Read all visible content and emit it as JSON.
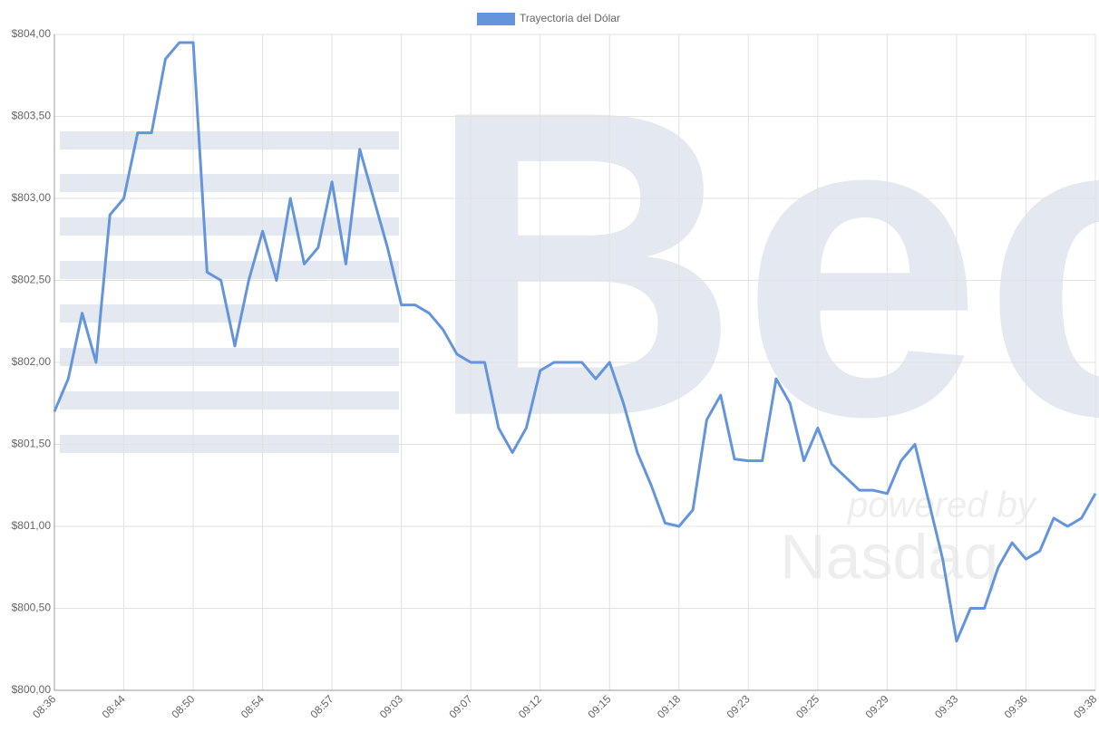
{
  "chart_data": {
    "type": "line",
    "legend": "top-center",
    "grid": true,
    "categories": [
      "08:36",
      null,
      null,
      null,
      null,
      "08:44",
      null,
      null,
      null,
      null,
      "08:50",
      null,
      null,
      null,
      null,
      "08:54",
      null,
      null,
      null,
      null,
      "08:57",
      null,
      null,
      null,
      null,
      "09:03",
      null,
      null,
      null,
      null,
      "09:07",
      null,
      null,
      null,
      null,
      "09:12",
      null,
      null,
      null,
      null,
      "09:15",
      null,
      null,
      null,
      null,
      "09:18",
      null,
      null,
      null,
      null,
      "09:23",
      null,
      null,
      null,
      null,
      "09:25",
      null,
      null,
      null,
      null,
      "09:29",
      null,
      null,
      null,
      null,
      "09:33",
      null,
      null,
      null,
      null,
      "09:36",
      null,
      null,
      null,
      null,
      "09:38"
    ],
    "series": [
      {
        "name": "Trayectoria del Dólar",
        "color": "#6495dc",
        "values": [
          801.7,
          801.9,
          802.3,
          802.0,
          802.9,
          803.0,
          803.4,
          803.4,
          803.85,
          803.95,
          803.95,
          802.55,
          802.5,
          802.1,
          802.5,
          802.8,
          802.5,
          803.0,
          802.6,
          802.7,
          803.1,
          802.6,
          803.3,
          803.0,
          802.7,
          802.35,
          802.35,
          802.3,
          802.2,
          802.05,
          802.0,
          802.0,
          801.6,
          801.45,
          801.6,
          801.95,
          802.0,
          802.0,
          802.0,
          801.9,
          802.0,
          801.75,
          801.45,
          801.25,
          801.02,
          801.0,
          801.1,
          801.65,
          801.8,
          801.41,
          801.4,
          801.4,
          801.9,
          801.75,
          801.4,
          801.6,
          801.38,
          801.3,
          801.22,
          801.22,
          801.2,
          801.4,
          801.5,
          801.15,
          800.8,
          800.3,
          800.5,
          800.5,
          800.75,
          800.9,
          800.8,
          800.85,
          801.05,
          801.0,
          801.05,
          801.2
        ]
      }
    ],
    "ylim": [
      800,
      804
    ],
    "yticks": [
      {
        "value": 800,
        "label": "$800,00"
      },
      {
        "value": 800.5,
        "label": "$800,50"
      },
      {
        "value": 801,
        "label": "$801,00"
      },
      {
        "value": 801.5,
        "label": "$801,50"
      },
      {
        "value": 802,
        "label": "$802,00"
      },
      {
        "value": 802.5,
        "label": "$802,50"
      },
      {
        "value": 803,
        "label": "$803,00"
      },
      {
        "value": 803.5,
        "label": "$803,50"
      },
      {
        "value": 804,
        "label": "$804,00"
      }
    ],
    "watermark": {
      "brand": "Bec",
      "tagline": "powered by",
      "partner": "Nasdaq"
    }
  }
}
